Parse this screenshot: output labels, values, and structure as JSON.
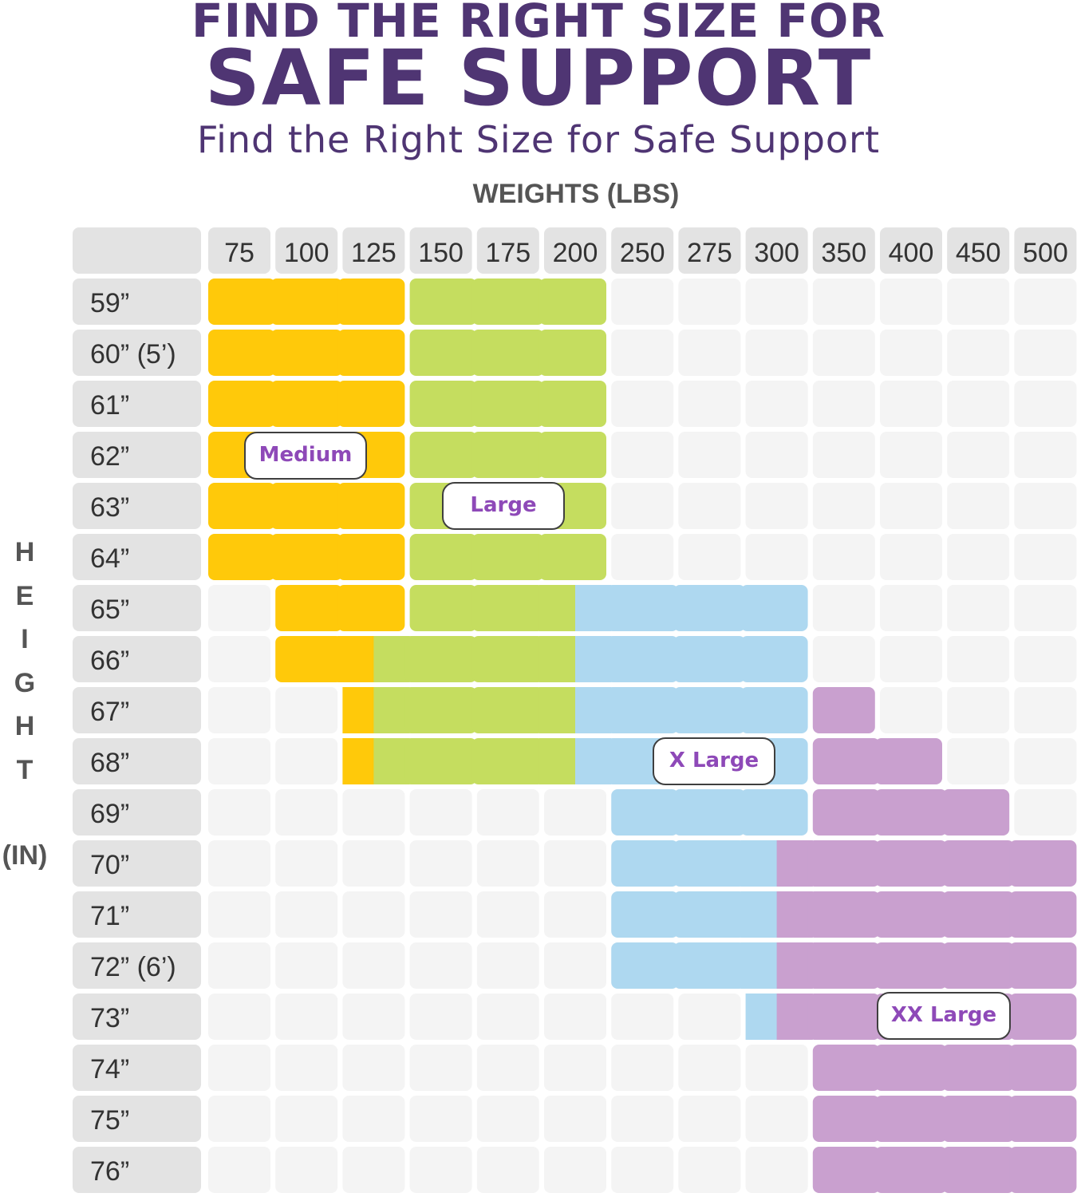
{
  "header": {
    "title_line1": "FIND THE RIGHT SIZE FOR",
    "title_line2": "SAFE SUPPORT",
    "subtitle": "Find the Right Size for Safe Support"
  },
  "chart_data": {
    "type": "heatmap",
    "xlabel": "WEIGHTS (LBS)",
    "ylabel": "HEIGHT (IN)",
    "ylabel_letters": [
      "H",
      "E",
      "I",
      "G",
      "H",
      "T"
    ],
    "ylabel_unit": "(IN)",
    "x": [
      "75",
      "100",
      "125",
      "150",
      "175",
      "200",
      "250",
      "275",
      "300",
      "350",
      "400",
      "450",
      "500"
    ],
    "y": [
      "59”",
      "60” (5’)",
      "61”",
      "62”",
      "63”",
      "64”",
      "65”",
      "66”",
      "67”",
      "68”",
      "69”",
      "70”",
      "71”",
      "72” (6’)",
      "73”",
      "74”",
      "75”",
      "76”"
    ],
    "sizes": [
      {
        "name": "Medium",
        "color": "#ffc90a"
      },
      {
        "name": "Large",
        "color": "#c5dd5f"
      },
      {
        "name": "X Large",
        "color": "#aed8f0"
      },
      {
        "name": "XX Large",
        "color": "#c9a0cf"
      }
    ],
    "empty_color": "#f4f4f4",
    "header_color": "#e3e3e3",
    "label_color": "#8e49b8",
    "cells": [
      [
        "M",
        "M",
        "M",
        "L",
        "L",
        "L",
        "",
        "",
        "",
        "",
        "",
        "",
        ""
      ],
      [
        "M",
        "M",
        "M",
        "L",
        "L",
        "L",
        "",
        "",
        "",
        "",
        "",
        "",
        ""
      ],
      [
        "M",
        "M",
        "M",
        "L",
        "L",
        "L",
        "",
        "",
        "",
        "",
        "",
        "",
        ""
      ],
      [
        "M",
        "M",
        "M",
        "L",
        "L",
        "L",
        "",
        "",
        "",
        "",
        "",
        "",
        ""
      ],
      [
        "M",
        "M",
        "M",
        "L",
        "L",
        "L",
        "",
        "",
        "",
        "",
        "",
        "",
        ""
      ],
      [
        "M",
        "M",
        "M",
        "L",
        "L",
        "L",
        "",
        "",
        "",
        "",
        "",
        "",
        ""
      ],
      [
        "",
        "M",
        "M",
        "L",
        "L",
        "L/XL",
        "XL",
        "XL",
        "XL",
        "",
        "",
        "",
        ""
      ],
      [
        "",
        "M",
        "M/L",
        "L",
        "L",
        "L/XL",
        "XL",
        "XL",
        "XL",
        "",
        "",
        "",
        ""
      ],
      [
        "",
        "",
        "M/L",
        "L",
        "L",
        "L/XL",
        "XL",
        "XL",
        "XL",
        "XXL",
        "",
        "",
        ""
      ],
      [
        "",
        "",
        "M/L",
        "L",
        "L",
        "L/XL",
        "XL",
        "XL",
        "XL",
        "XXL",
        "XXL",
        "",
        ""
      ],
      [
        "",
        "",
        "",
        "",
        "",
        "",
        "XL",
        "XL",
        "XL",
        "XXL",
        "XXL",
        "XXL",
        ""
      ],
      [
        "",
        "",
        "",
        "",
        "",
        "",
        "XL",
        "XL",
        "XL/XXL",
        "XXL",
        "XXL",
        "XXL",
        "XXL"
      ],
      [
        "",
        "",
        "",
        "",
        "",
        "",
        "XL",
        "XL",
        "XL/XXL",
        "XXL",
        "XXL",
        "XXL",
        "XXL"
      ],
      [
        "",
        "",
        "",
        "",
        "",
        "",
        "XL",
        "XL",
        "XL/XXL",
        "XXL",
        "XXL",
        "XXL",
        "XXL"
      ],
      [
        "",
        "",
        "",
        "",
        "",
        "",
        "",
        "",
        "XL/XXL",
        "XXL",
        "XXL",
        "XXL",
        "XXL"
      ],
      [
        "",
        "",
        "",
        "",
        "",
        "",
        "",
        "",
        "",
        "XXL",
        "XXL",
        "XXL",
        "XXL"
      ],
      [
        "",
        "",
        "",
        "",
        "",
        "",
        "",
        "",
        "",
        "XXL",
        "XXL",
        "XXL",
        "XXL"
      ],
      [
        "",
        "",
        "",
        "",
        "",
        "",
        "",
        "",
        "",
        "XXL",
        "XXL",
        "XXL",
        "XXL"
      ]
    ],
    "region_labels": [
      "Medium",
      "Large",
      "X Large",
      "XX Large"
    ]
  }
}
